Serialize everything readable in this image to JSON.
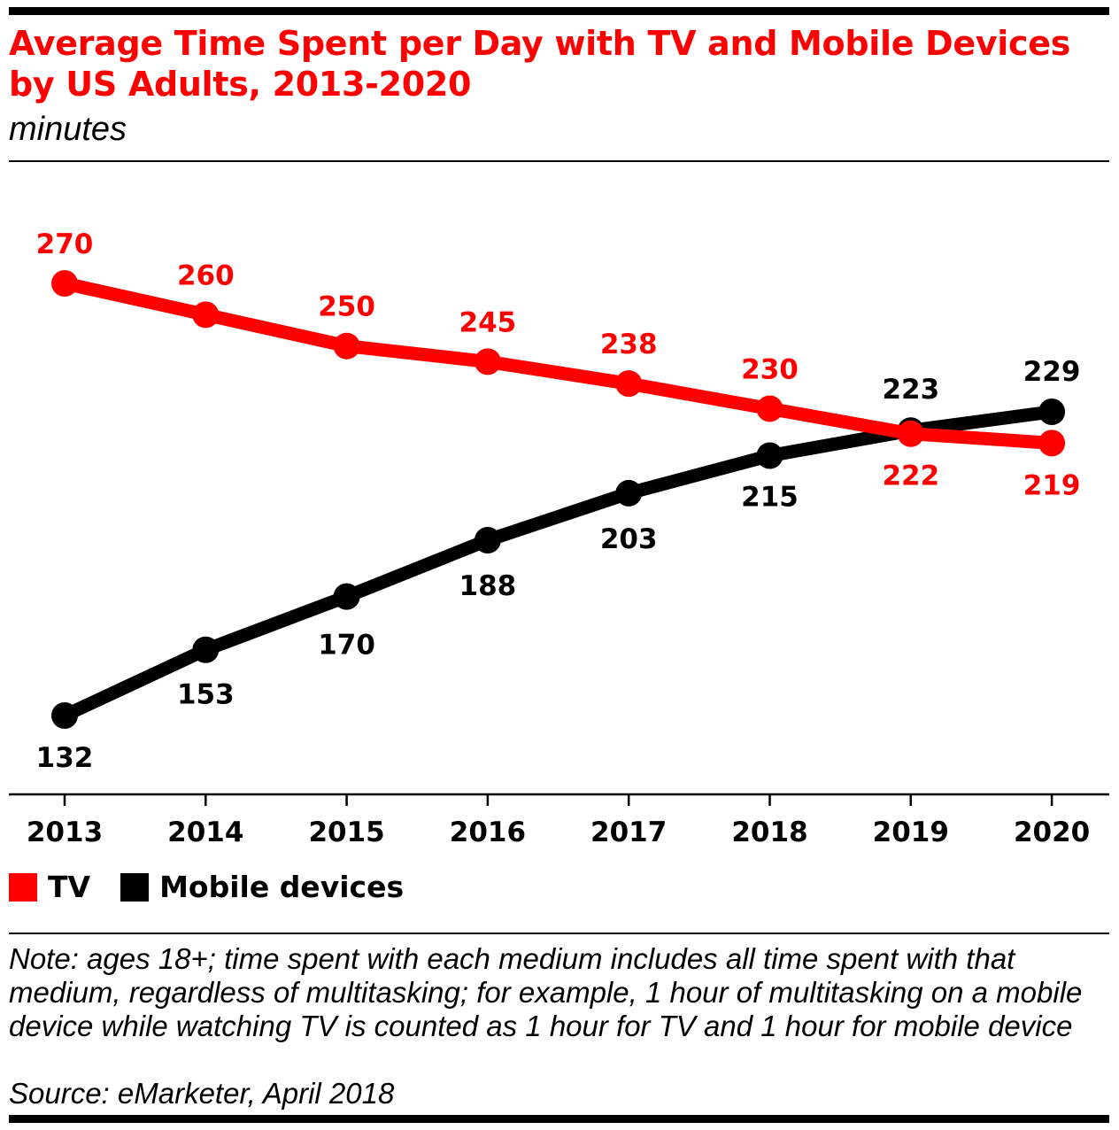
{
  "header": {
    "title": "Average Time Spent per Day with TV and Mobile Devices by US Adults, 2013-2020",
    "subtitle": "minutes"
  },
  "legend": [
    {
      "label": "TV",
      "color": "#ff0000"
    },
    {
      "label": "Mobile devices",
      "color": "#000000"
    }
  ],
  "footer": {
    "note": "Note: ages 18+; time spent with each medium includes all time spent with that medium, regardless of multitasking; for example, 1 hour of multitasking on a mobile device while watching TV is counted as 1 hour for TV and 1 hour for mobile device",
    "source": "Source: eMarketer, April 2018"
  },
  "chart_data": {
    "type": "line",
    "title": "Average Time Spent per Day with TV and Mobile Devices by US Adults, 2013-2020",
    "subtitle": "minutes",
    "categories": [
      "2013",
      "2014",
      "2015",
      "2016",
      "2017",
      "2018",
      "2019",
      "2020"
    ],
    "series": [
      {
        "name": "TV",
        "color": "#ff0000",
        "values": [
          270,
          260,
          250,
          245,
          238,
          230,
          222,
          219
        ]
      },
      {
        "name": "Mobile devices",
        "color": "#000000",
        "values": [
          132,
          153,
          170,
          188,
          203,
          215,
          223,
          229
        ]
      }
    ],
    "ylim": [
      120,
      280
    ],
    "grid": false,
    "legend_position": "bottom-left"
  }
}
